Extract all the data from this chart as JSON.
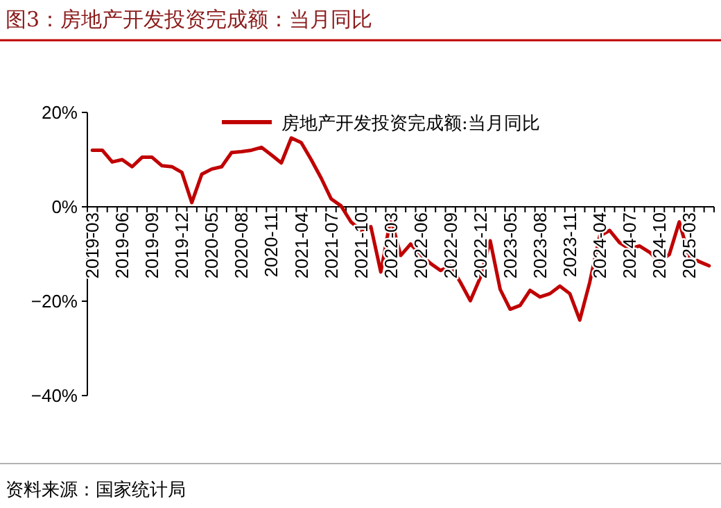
{
  "chart_data": {
    "type": "line",
    "title": "图3：房地产开发投资完成额：当月同比",
    "categories": [
      "2019-03",
      null,
      null,
      "2019-06",
      null,
      null,
      "2019-09",
      null,
      null,
      "2019-12",
      null,
      null,
      "2020-05",
      null,
      null,
      "2020-08",
      null,
      null,
      "2020-11",
      null,
      null,
      "2021-04",
      null,
      null,
      "2021-07",
      null,
      null,
      "2021-10",
      null,
      null,
      "2022-03",
      null,
      null,
      "2022-06",
      null,
      null,
      "2022-09",
      null,
      null,
      "2022-12",
      null,
      null,
      "2023-05",
      null,
      null,
      "2023-08",
      null,
      null,
      "2023-11",
      null,
      null,
      "2024-04",
      null,
      null,
      "2024-07",
      null,
      null,
      "2024-10",
      null,
      null,
      "2025-03",
      null,
      null
    ],
    "series": [
      {
        "name": "房地产开发投资完成额:当月同比",
        "color": "#c00000",
        "values": [
          12,
          12,
          9.5,
          10,
          8.5,
          10.5,
          10.5,
          8.7,
          8.5,
          7.3,
          0.9,
          6.9,
          8,
          8.5,
          11.5,
          11.7,
          12,
          12.6,
          11,
          9.3,
          14.6,
          13.6,
          10,
          6.1,
          1.7,
          0.2,
          -3.2,
          -5,
          -4.2,
          -13.8,
          -2.4,
          -10.3,
          -7.9,
          -10.1,
          -12,
          -13.5,
          -12.5,
          -16,
          -19.9,
          -15,
          -7.2,
          -17.5,
          -21.7,
          -20.9,
          -17.7,
          -19.1,
          -18.4,
          -16.8,
          -18.4,
          -24,
          -16,
          -6.2,
          -5,
          -7.6,
          -8.9,
          -8.3,
          -9.6,
          -11.6,
          -10.1,
          -3.2,
          -10.6,
          -11.6,
          -12.5
        ]
      }
    ],
    "ylim": [
      -40,
      20
    ],
    "yticks": [
      {
        "value": 20,
        "label": "20%"
      },
      {
        "value": 0,
        "label": "0%"
      },
      {
        "value": -20,
        "label": "−20%"
      },
      {
        "value": -40,
        "label": "−40%"
      }
    ],
    "legend": "top",
    "grid": false,
    "annotations": [
      "资料来源：国家统计局"
    ]
  }
}
